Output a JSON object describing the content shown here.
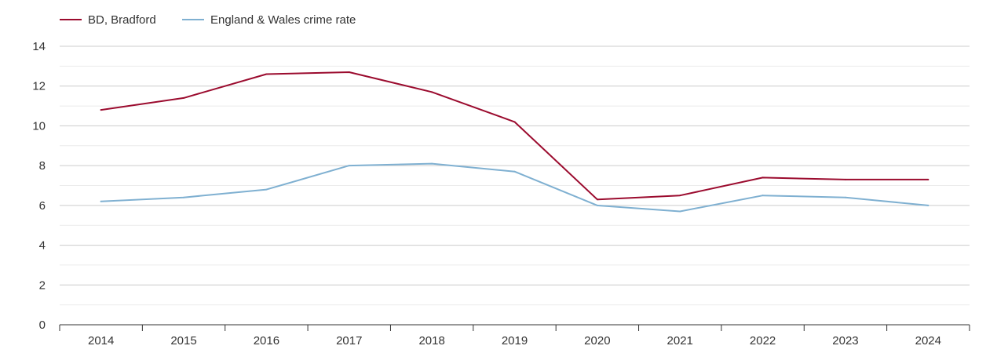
{
  "chart_data": {
    "type": "line",
    "title": "",
    "xlabel": "",
    "ylabel": "",
    "categories": [
      "2014",
      "2015",
      "2016",
      "2017",
      "2018",
      "2019",
      "2020",
      "2021",
      "2022",
      "2023",
      "2024"
    ],
    "ylim": [
      0,
      14
    ],
    "yticks": [
      "0",
      "2",
      "4",
      "6",
      "8",
      "10",
      "12",
      "14"
    ],
    "grid": true,
    "legend_position": "top-left",
    "series": [
      {
        "name": "BD, Bradford",
        "color": "#9b0b2e",
        "values": [
          10.8,
          11.4,
          12.6,
          12.7,
          11.7,
          10.2,
          6.3,
          6.5,
          7.4,
          7.3,
          7.3
        ]
      },
      {
        "name": "England & Wales crime rate",
        "color": "#7fb0d1",
        "values": [
          6.2,
          6.4,
          6.8,
          8.0,
          8.1,
          7.7,
          6.0,
          5.7,
          6.5,
          6.4,
          6.0
        ]
      }
    ]
  }
}
